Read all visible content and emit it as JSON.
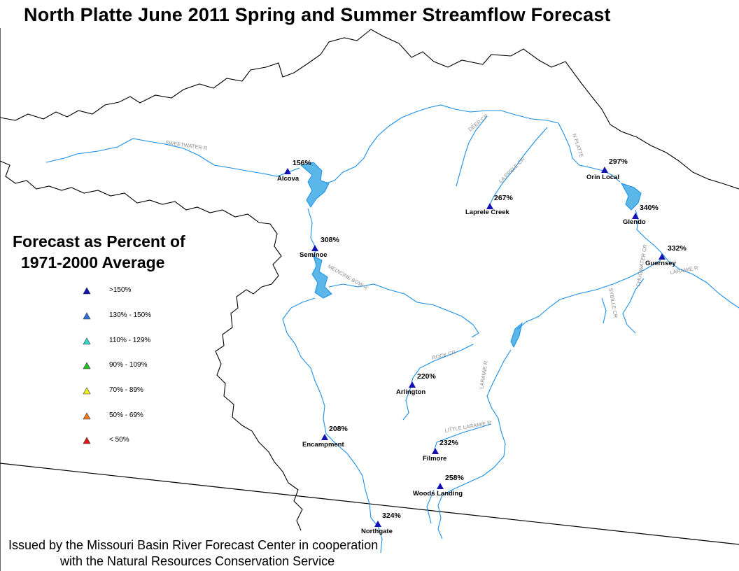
{
  "title": "North Platte June 2011 Spring and Summer Streamflow Forecast",
  "legend": {
    "title_line1": "Forecast as Percent of",
    "title_line2": "1971-2000 Average",
    "items": [
      {
        "label": ">150%",
        "color": "#1212b4"
      },
      {
        "label": "130% - 150%",
        "color": "#2f6fd8"
      },
      {
        "label": "110% - 129%",
        "color": "#30d8d0"
      },
      {
        "label": "90% - 109%",
        "color": "#22c022"
      },
      {
        "label": "70% - 89%",
        "color": "#f2ee1c"
      },
      {
        "label": "50% - 69%",
        "color": "#f07b1c"
      },
      {
        "label": "< 50%",
        "color": "#e01818"
      }
    ]
  },
  "stations": [
    {
      "name": "Alcova",
      "percent": "156%",
      "category": ">150%"
    },
    {
      "name": "Seminoe",
      "percent": "308%",
      "category": ">150%"
    },
    {
      "name": "Orin Local",
      "percent": "297%",
      "category": ">150%"
    },
    {
      "name": "Laprele Creek",
      "percent": "267%",
      "category": ">150%"
    },
    {
      "name": "Glendo",
      "percent": "340%",
      "category": ">150%"
    },
    {
      "name": "Guernsey",
      "percent": "332%",
      "category": ">150%"
    },
    {
      "name": "Arlington",
      "percent": "220%",
      "category": ">150%"
    },
    {
      "name": "Encampment",
      "percent": "208%",
      "category": ">150%"
    },
    {
      "name": "Filmore",
      "percent": "232%",
      "category": ">150%"
    },
    {
      "name": "Woods Landing",
      "percent": "258%",
      "category": ">150%"
    },
    {
      "name": "Northgate",
      "percent": "324%",
      "category": ">150%"
    }
  ],
  "river_labels": [
    "SWEETWATER R",
    "DEER CR",
    "LA PRELE CR",
    "N PLATTE",
    "LARAMIE R",
    "SYBILLE CR",
    "CHUGWATER CR",
    "ROCK CR",
    "LITTLE LARAMIE R",
    "MEDICINE BOW R"
  ],
  "footer": {
    "line1": "Issued by the Missouri Basin River Forecast Center in cooperation",
    "line2": "with the Natural Resources Conservation Service"
  },
  "colors": {
    "river": "#1a8fe6",
    "reservoir": "#1a8fe6",
    "boundary": "#000000",
    "station_marker": "#1212b4",
    "river_label": "#8a8a8a"
  }
}
